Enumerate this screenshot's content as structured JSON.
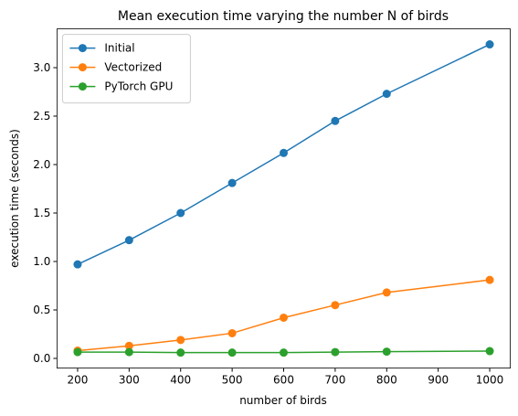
{
  "chart_data": {
    "type": "line",
    "title": "Mean execution time varying the number N of birds",
    "x_label": "number of birds",
    "y_label": "execution time (seconds)",
    "x": [
      200,
      300,
      400,
      500,
      600,
      700,
      800,
      1000
    ],
    "series": [
      {
        "name": "Initial",
        "color": "#1f77b4",
        "values": [
          0.97,
          1.22,
          1.5,
          1.81,
          2.12,
          2.45,
          2.73,
          3.24
        ]
      },
      {
        "name": "Vectorized",
        "color": "#ff7f0e",
        "values": [
          0.08,
          0.13,
          0.19,
          0.26,
          0.42,
          0.55,
          0.68,
          0.81
        ]
      },
      {
        "name": "PyTorch GPU",
        "color": "#2ca02c",
        "values": [
          0.065,
          0.065,
          0.06,
          0.06,
          0.06,
          0.065,
          0.07,
          0.075
        ]
      }
    ],
    "xlim": [
      160,
      1040
    ],
    "xticks": [
      200,
      300,
      400,
      500,
      600,
      700,
      800,
      900,
      1000
    ],
    "ylim": [
      -0.1,
      3.4
    ],
    "yticks": [
      {
        "value": 0,
        "label": "0.0"
      },
      0.5,
      {
        "value": 1,
        "label": "1.0"
      },
      1.5,
      {
        "value": 2,
        "label": "2.0"
      },
      2.5,
      {
        "value": 3,
        "label": "3.0"
      }
    ],
    "grid": false,
    "legend": "upper left"
  }
}
